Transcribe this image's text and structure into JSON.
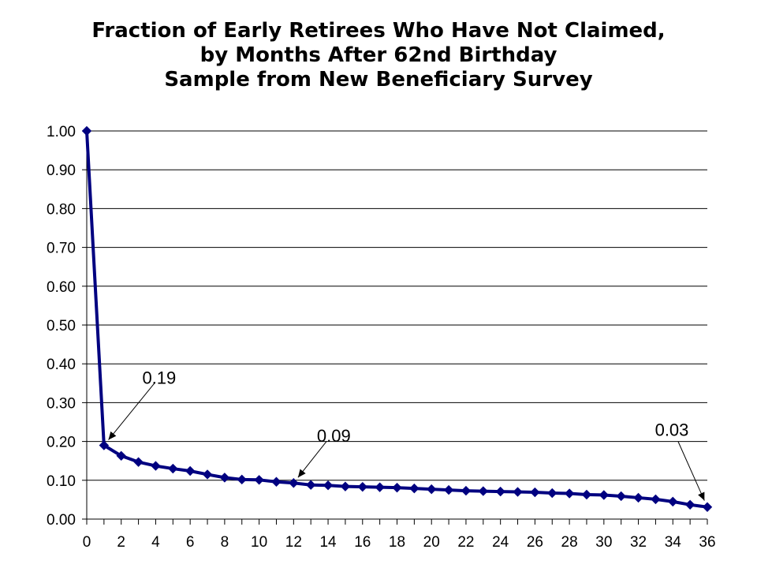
{
  "title": {
    "lines": [
      "Fraction of Early Retirees Who Have Not Claimed,",
      "by Months After 62nd Birthday",
      "Sample from New Beneficiary Survey"
    ]
  },
  "colors": {
    "series": "#000080",
    "grid": "#000000",
    "background": "#ffffff"
  },
  "chart_data": {
    "type": "line",
    "title": "Fraction of Early Retirees Who Have Not Claimed, by Months After 62nd Birthday Sample from New Beneficiary Survey",
    "xlabel": "",
    "ylabel": "",
    "xlim": [
      0,
      36
    ],
    "ylim": [
      0,
      1.0
    ],
    "grid": true,
    "legend": "none",
    "x_ticks": [
      "0",
      "2",
      "4",
      "6",
      "8",
      "10",
      "12",
      "14",
      "16",
      "18",
      "20",
      "22",
      "24",
      "26",
      "28",
      "30",
      "32",
      "34",
      "36"
    ],
    "y_ticks": [
      "0.00",
      "0.10",
      "0.20",
      "0.30",
      "0.40",
      "0.50",
      "0.60",
      "0.70",
      "0.80",
      "0.90",
      "1.00"
    ],
    "x": [
      0,
      1,
      2,
      3,
      4,
      5,
      6,
      7,
      8,
      9,
      10,
      11,
      12,
      13,
      14,
      15,
      16,
      17,
      18,
      19,
      20,
      21,
      22,
      23,
      24,
      25,
      26,
      27,
      28,
      29,
      30,
      31,
      32,
      33,
      34,
      35,
      36
    ],
    "series": [
      {
        "marker": "diamond",
        "values": [
          1.0,
          0.19,
          0.163,
          0.147,
          0.137,
          0.13,
          0.124,
          0.115,
          0.107,
          0.102,
          0.101,
          0.096,
          0.093,
          0.088,
          0.087,
          0.084,
          0.083,
          0.082,
          0.081,
          0.079,
          0.077,
          0.075,
          0.073,
          0.072,
          0.071,
          0.07,
          0.069,
          0.067,
          0.066,
          0.063,
          0.062,
          0.059,
          0.055,
          0.051,
          0.045,
          0.037,
          0.031
        ]
      }
    ],
    "annotations": [
      {
        "text": "0.19",
        "x": 1
      },
      {
        "text": "0.09",
        "x": 12
      },
      {
        "text": "0.03",
        "x": 36
      }
    ]
  }
}
